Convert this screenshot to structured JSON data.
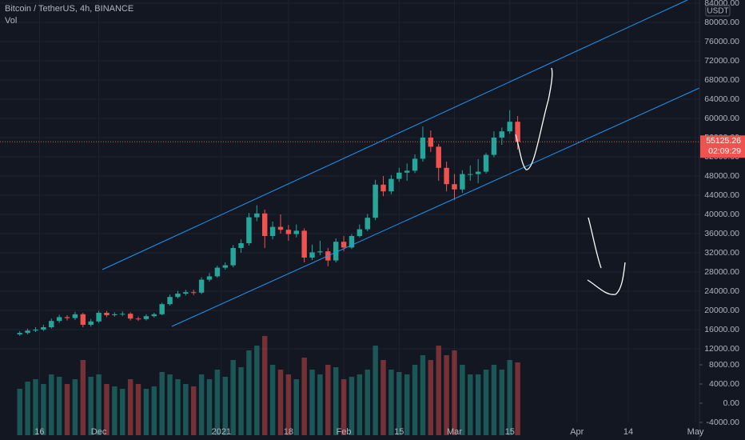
{
  "chart_data": {
    "type": "candlestick",
    "title": "Bitcoin / TetherUS, 4h, BINANCE",
    "indicator": "Vol",
    "currency": "USDT",
    "last_price": 55125.26,
    "countdown": "02:09:29",
    "up_color": "#26a69a",
    "down_color": "#ef5350",
    "grid": true,
    "x": [
      "2020-11-11",
      "2020-11-13",
      "2020-11-15",
      "2020-11-17",
      "2020-11-19",
      "2020-11-21",
      "2020-11-23",
      "2020-11-25",
      "2020-11-27",
      "2020-11-29",
      "2020-12-01",
      "2020-12-03",
      "2020-12-05",
      "2020-12-07",
      "2020-12-09",
      "2020-12-11",
      "2020-12-13",
      "2020-12-15",
      "2020-12-17",
      "2020-12-19",
      "2020-12-21",
      "2020-12-23",
      "2020-12-25",
      "2020-12-27",
      "2020-12-29",
      "2020-12-31",
      "2021-01-02",
      "2021-01-04",
      "2021-01-06",
      "2021-01-08",
      "2021-01-10",
      "2021-01-12",
      "2021-01-14",
      "2021-01-16",
      "2021-01-18",
      "2021-01-20",
      "2021-01-22",
      "2021-01-24",
      "2021-01-26",
      "2021-01-28",
      "2021-01-30",
      "2021-02-01",
      "2021-02-03",
      "2021-02-05",
      "2021-02-07",
      "2021-02-09",
      "2021-02-11",
      "2021-02-13",
      "2021-02-15",
      "2021-02-17",
      "2021-02-19",
      "2021-02-21",
      "2021-02-23",
      "2021-02-25",
      "2021-02-27",
      "2021-03-01",
      "2021-03-03",
      "2021-03-05",
      "2021-03-07",
      "2021-03-09",
      "2021-03-11",
      "2021-03-13",
      "2021-03-15",
      "2021-03-17"
    ],
    "open": [
      15000,
      15300,
      15800,
      16000,
      16500,
      17800,
      18600,
      18400,
      19200,
      17000,
      17700,
      19500,
      19000,
      19200,
      19300,
      18300,
      18200,
      18800,
      19200,
      21300,
      22800,
      23500,
      23800,
      23700,
      26400,
      27100,
      28900,
      29400,
      33000,
      34000,
      39400,
      40200,
      35500,
      37400,
      36800,
      35900,
      36600,
      31000,
      32100,
      32300,
      30400,
      34300,
      33100,
      35500,
      36900,
      39300,
      46200,
      44800,
      47400,
      48700,
      49100,
      51600,
      56000,
      54100,
      49700,
      46300,
      45200,
      48400,
      48400,
      48900,
      52400,
      56000,
      57300,
      59300
    ],
    "high": [
      15700,
      16200,
      16500,
      17000,
      18300,
      19100,
      19000,
      19700,
      19500,
      18200,
      19900,
      19900,
      19600,
      19800,
      19600,
      18700,
      19200,
      19500,
      21600,
      23300,
      24100,
      24300,
      24300,
      26900,
      27800,
      29300,
      30000,
      33600,
      34800,
      40300,
      41900,
      41000,
      38500,
      40000,
      37800,
      37900,
      37100,
      33700,
      34500,
      33000,
      35000,
      35500,
      35900,
      37900,
      40100,
      47200,
      48000,
      48200,
      49700,
      50600,
      52500,
      58300,
      57500,
      54700,
      51000,
      48400,
      49200,
      50200,
      51500,
      52800,
      57300,
      58100,
      61700,
      60500
    ],
    "low": [
      14700,
      15000,
      15500,
      15700,
      16200,
      17400,
      17900,
      18000,
      16500,
      16600,
      17400,
      18600,
      18700,
      18800,
      17900,
      17800,
      17900,
      18500,
      19000,
      21000,
      22500,
      23100,
      23200,
      23400,
      26000,
      26800,
      28500,
      29000,
      32000,
      33500,
      38600,
      33000,
      34800,
      36000,
      34500,
      35200,
      30000,
      30500,
      31500,
      29200,
      30000,
      32300,
      32800,
      35200,
      36500,
      38800,
      43800,
      44200,
      46800,
      47000,
      48600,
      51000,
      53000,
      47000,
      44800,
      43000,
      44500,
      47000,
      46500,
      48500,
      51900,
      54500,
      56800,
      53500
    ],
    "close": [
      15300,
      15800,
      16000,
      16500,
      17800,
      18600,
      18400,
      19200,
      17000,
      17700,
      19500,
      19000,
      19200,
      19300,
      18300,
      18200,
      18800,
      19200,
      21300,
      22800,
      23500,
      23800,
      23700,
      26400,
      27100,
      28900,
      29400,
      33000,
      34000,
      39400,
      40200,
      35500,
      37400,
      36800,
      35900,
      36600,
      31000,
      32100,
      32300,
      30400,
      34300,
      33100,
      35500,
      36900,
      39300,
      46200,
      44800,
      47400,
      48700,
      49100,
      51600,
      56000,
      54100,
      49700,
      46300,
      45200,
      48400,
      48400,
      48900,
      52400,
      56000,
      57300,
      59300,
      55100
    ],
    "volume": {
      "axis": "y2",
      "values": [
        3000,
        4500,
        5000,
        4000,
        6000,
        5500,
        4000,
        5000,
        9000,
        5500,
        6000,
        4000,
        3500,
        3000,
        5000,
        4000,
        3000,
        3500,
        6500,
        6000,
        5000,
        4000,
        3500,
        6000,
        5000,
        7000,
        5500,
        9000,
        7500,
        11000,
        12000,
        14000,
        8000,
        7000,
        6000,
        5000,
        9500,
        7000,
        6000,
        8000,
        7500,
        5000,
        5500,
        6000,
        7000,
        12000,
        9000,
        7000,
        6500,
        6000,
        8000,
        10000,
        9000,
        12000,
        10000,
        11000,
        8000,
        6000,
        6000,
        7000,
        8000,
        7000,
        9000,
        8500
      ]
    },
    "xlim": [
      "2020-11-06",
      "2021-05-02"
    ],
    "xticks": [
      {
        "value": "2020-11-16",
        "label": "16"
      },
      {
        "value": "2020-12-01",
        "label": "Dec"
      },
      {
        "value": "2021-01-01",
        "label": "2021"
      },
      {
        "value": "2021-01-18",
        "label": "18"
      },
      {
        "value": "2021-02-01",
        "label": "Feb"
      },
      {
        "value": "2021-02-15",
        "label": "15"
      },
      {
        "value": "2021-03-01",
        "label": "Mar"
      },
      {
        "value": "2021-03-15",
        "label": "15"
      },
      {
        "value": "2021-04-01",
        "label": "Apr"
      },
      {
        "value": "2021-04-14",
        "label": "14"
      },
      {
        "value": "2021-05-01",
        "label": "May"
      }
    ],
    "ylim": [
      -6000,
      84000
    ],
    "yticks": [
      {
        "value": 84000,
        "label": "84000.00"
      },
      {
        "value": 80000,
        "label": "80000.00"
      },
      {
        "value": 76000,
        "label": "76000.00"
      },
      {
        "value": 72000,
        "label": "72000.00"
      },
      {
        "value": 68000,
        "label": "68000.00"
      },
      {
        "value": 64000,
        "label": "64000.00"
      },
      {
        "value": 60000,
        "label": "60000.00"
      },
      {
        "value": 56000,
        "label": "56000.00"
      },
      {
        "value": 52000,
        "label": "52000.00"
      },
      {
        "value": 48000,
        "label": "48000.00"
      },
      {
        "value": 44000,
        "label": "44000.00"
      },
      {
        "value": 40000,
        "label": "40000.00"
      },
      {
        "value": 36000,
        "label": "36000.00"
      },
      {
        "value": 32000,
        "label": "32000.00"
      },
      {
        "value": 28000,
        "label": "28000.00"
      },
      {
        "value": 24000,
        "label": "24000.00"
      },
      {
        "value": 20000,
        "label": "20000.00"
      },
      {
        "value": 16000,
        "label": "16000.00"
      },
      {
        "value": 12000,
        "label": "12000.00"
      }
    ],
    "y2lim": [
      -6667,
      83333
    ],
    "y2ticks": [
      {
        "value": 8000,
        "label": "8000.00"
      },
      {
        "value": 4000,
        "label": "4000.00"
      },
      {
        "value": 0,
        "label": "0.00"
      },
      {
        "value": -4000,
        "label": "-4000.00"
      }
    ]
  }
}
